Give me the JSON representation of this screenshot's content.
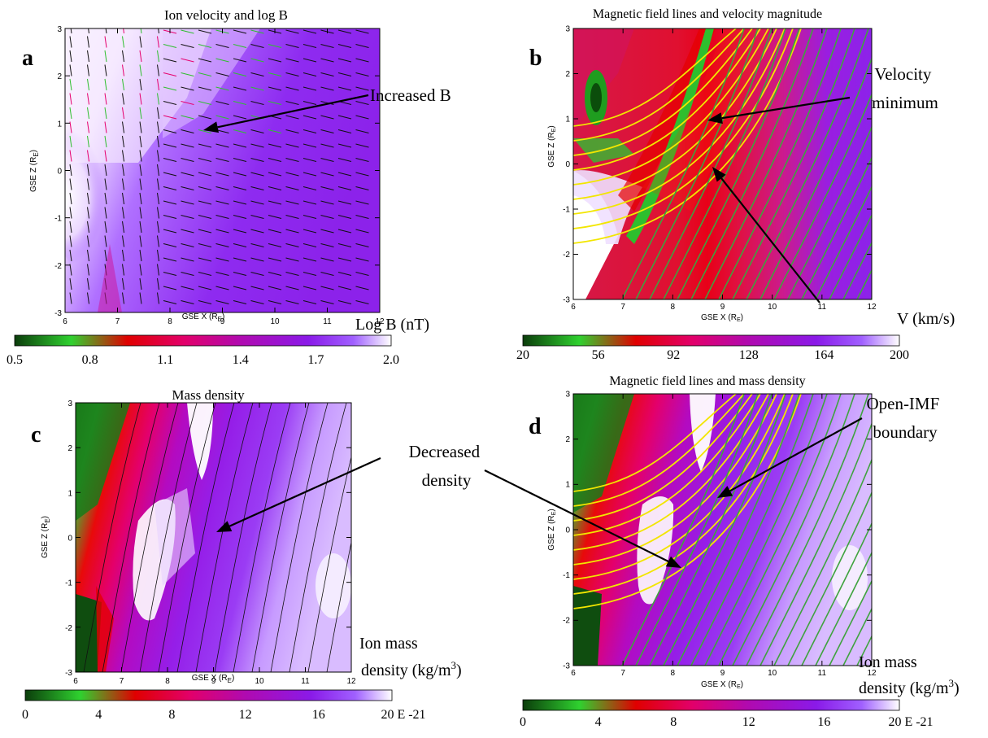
{
  "colors": {
    "colorbar_stops": [
      "#0b3d0b",
      "#2fd12f",
      "#e00000",
      "#e2006a",
      "#b00ab0",
      "#8a1ae8",
      "#a060ff",
      "#ffffff"
    ],
    "field_line_yellow": "#f2e600",
    "field_line_green": "#3fa33f",
    "annotation_arrow": "#000000"
  },
  "panels": {
    "a": {
      "letter": "a",
      "title": "Ion velocity and log B",
      "xlabel": "GSE X (R",
      "ylabel": "GSE Z (R",
      "unit_sub": "E",
      "unit_close": ")",
      "colorbar_label": "Log B (nT)",
      "colorbar_ticks": [
        "0.5",
        "0.8",
        "1.1",
        "1.4",
        "1.7",
        "2.0"
      ],
      "annotation": "Increased B"
    },
    "b": {
      "letter": "b",
      "title": "Magnetic field lines and velocity magnitude",
      "xlabel": "GSE X (R",
      "ylabel": "GSE Z (R",
      "unit_sub": "E",
      "unit_close": ")",
      "colorbar_label": "V (km/s)",
      "colorbar_ticks": [
        "20",
        "56",
        "92",
        "128",
        "164",
        "200"
      ],
      "annotation_1": "Velocity",
      "annotation_2": "minimum"
    },
    "c": {
      "letter": "c",
      "title": "Mass density",
      "xlabel": "GSE X (R",
      "ylabel": "GSE Z (R",
      "unit_sub": "E",
      "unit_close": ")",
      "colorbar_label_1": "Ion mass",
      "colorbar_label_2": "density (kg/m",
      "colorbar_label_sup": "3",
      "colorbar_label_close": ")",
      "colorbar_ticks": [
        "0",
        "4",
        "8",
        "12",
        "16",
        "20 E -21"
      ],
      "annotation_1": "Decreased",
      "annotation_2": "density"
    },
    "d": {
      "letter": "d",
      "title": "Magnetic field lines and mass density",
      "xlabel": "GSE X (R",
      "ylabel": "GSE Z (R",
      "unit_sub": "E",
      "unit_close": ")",
      "colorbar_label_1": "Ion mass",
      "colorbar_label_2": "density (kg/m",
      "colorbar_label_sup": "3",
      "colorbar_label_close": ")",
      "colorbar_ticks": [
        "0",
        "4",
        "8",
        "12",
        "16",
        "20 E -21"
      ],
      "annotation_1": "Open-IMF",
      "annotation_2": "boundary"
    }
  },
  "chart_data": [
    {
      "type": "heatmap",
      "panel": "a",
      "title": "Ion velocity and log B",
      "xlabel": "GSE X (R_E)",
      "ylabel": "GSE Z (R_E)",
      "xlim": [
        6,
        12
      ],
      "ylim": [
        -3,
        3
      ],
      "x_ticks": [
        6,
        7,
        8,
        9,
        10,
        11,
        12
      ],
      "y_ticks": [
        -3,
        -2,
        -1,
        0,
        1,
        2,
        3
      ],
      "colorbar": {
        "label": "Log B (nT)",
        "range": [
          0.5,
          2.0
        ],
        "ticks": [
          0.5,
          0.8,
          1.1,
          1.4,
          1.7,
          2.0
        ]
      },
      "overlay": "ion velocity vectors",
      "annotations": [
        {
          "text": "Increased B",
          "points_to": [
            8.4,
            0.9
          ]
        }
      ]
    },
    {
      "type": "heatmap",
      "panel": "b",
      "title": "Magnetic field lines and velocity magnitude",
      "xlabel": "GSE X (R_E)",
      "ylabel": "GSE Z (R_E)",
      "xlim": [
        6,
        12
      ],
      "ylim": [
        -3,
        3
      ],
      "x_ticks": [
        6,
        7,
        8,
        9,
        10,
        11,
        12
      ],
      "y_ticks": [
        -3,
        -2,
        -1,
        0,
        1,
        2,
        3
      ],
      "colorbar": {
        "label": "V (km/s)",
        "range": [
          20,
          200
        ],
        "ticks": [
          20,
          56,
          92,
          128,
          164,
          200
        ]
      },
      "overlay": "magnetic field lines",
      "annotations": [
        {
          "text": "Velocity minimum",
          "points_to": [
            8.9,
            0.9
          ]
        },
        {
          "text": "Open-IMF boundary",
          "points_to": [
            8.8,
            0.2
          ]
        }
      ]
    },
    {
      "type": "heatmap",
      "panel": "c",
      "title": "Mass density",
      "xlabel": "GSE X (R_E)",
      "ylabel": "GSE Z (R_E)",
      "xlim": [
        6,
        12
      ],
      "ylim": [
        -3,
        3
      ],
      "x_ticks": [
        6,
        7,
        8,
        9,
        10,
        11,
        12
      ],
      "y_ticks": [
        -3,
        -2,
        -1,
        0,
        1,
        2,
        3
      ],
      "colorbar": {
        "label": "Ion mass density (kg/m^3)",
        "range": [
          0,
          20
        ],
        "ticks": [
          0,
          4,
          8,
          12,
          16,
          20
        ],
        "scale": "E -21"
      },
      "annotations": [
        {
          "text": "Decreased density",
          "points_to": [
            8.7,
            0.8
          ]
        }
      ]
    },
    {
      "type": "heatmap",
      "panel": "d",
      "title": "Magnetic field lines and mass density",
      "xlabel": "GSE X (R_E)",
      "ylabel": "GSE Z (R_E)",
      "xlim": [
        6,
        12
      ],
      "ylim": [
        -3,
        3
      ],
      "x_ticks": [
        6,
        7,
        8,
        9,
        10,
        11,
        12
      ],
      "y_ticks": [
        -3,
        -2,
        -1,
        0,
        1,
        2,
        3
      ],
      "colorbar": {
        "label": "Ion mass density (kg/m^3)",
        "range": [
          0,
          20
        ],
        "ticks": [
          0,
          4,
          8,
          12,
          16,
          20
        ],
        "scale": "E -21"
      },
      "overlay": "magnetic field lines",
      "annotations": [
        {
          "text": "Decreased density",
          "points_to": [
            8.4,
            -0.8
          ]
        },
        {
          "text": "Open-IMF boundary",
          "points_to": [
            8.9,
            0.9
          ]
        }
      ]
    }
  ]
}
